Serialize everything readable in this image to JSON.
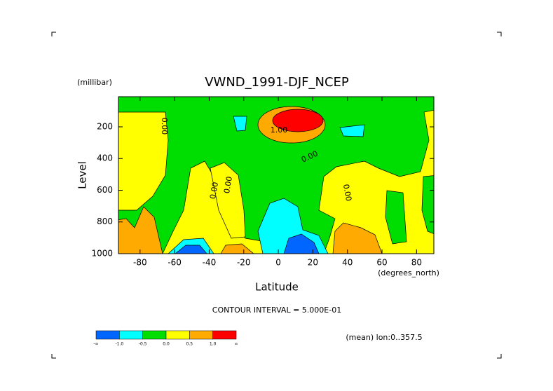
{
  "chart_data": {
    "type": "contour",
    "title": "VWND_1991-DJF_NCEP",
    "y_unit": "(millibar)",
    "x_unit": "(degrees_north)",
    "xlabel": "Latitude",
    "ylabel": "Level",
    "xlim": [
      -92.5,
      90
    ],
    "ylim": [
      10,
      1000
    ],
    "xticks": [
      -80,
      -60,
      -40,
      -20,
      0,
      20,
      40,
      60,
      80
    ],
    "yticks": [
      200,
      400,
      600,
      800,
      1000
    ],
    "contour_labels": [
      "0.00",
      "1.00",
      "0.00",
      "0.00",
      "0.00",
      "0.00"
    ],
    "contour_interval": "CONTOUR INTERVAL = 5.000E-01",
    "footer": "(mean) lon:0..357.5",
    "colorbar": {
      "colors": [
        "#0066ff",
        "#00ffff",
        "#00dd00",
        "#ffff00",
        "#ffaa00",
        "#ff0000"
      ],
      "labels": [
        "-∞",
        "-1.0",
        "-0.5",
        "0.0",
        "0.5",
        "1.0",
        "∞"
      ]
    }
  }
}
